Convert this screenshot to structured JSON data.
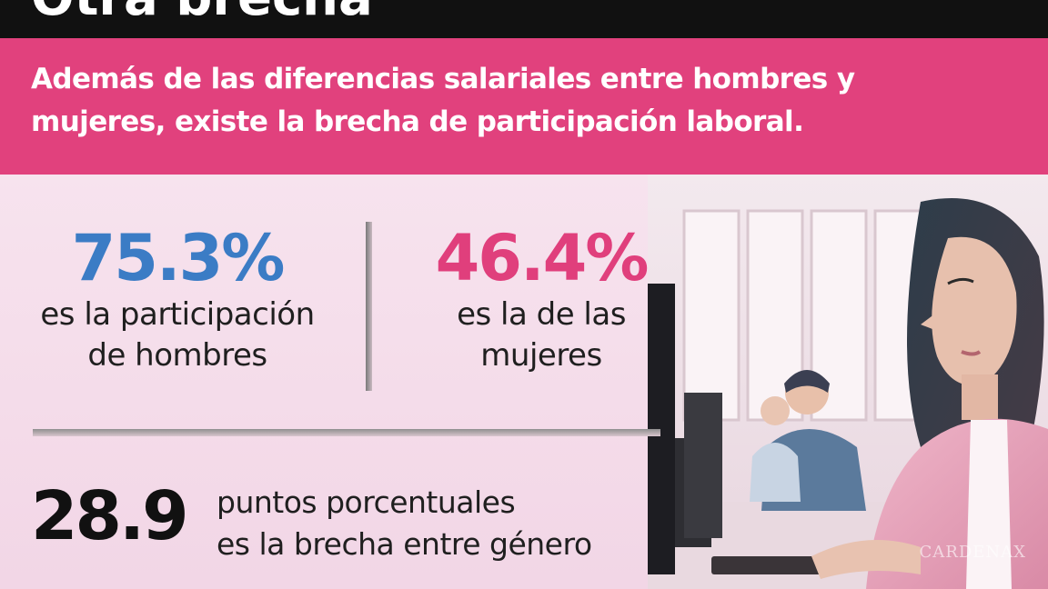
{
  "header": {
    "title": "Otra brecha"
  },
  "intro": {
    "text": "Además de las diferencias salariales entre hombres y mujeres, existe la brecha de participación laboral."
  },
  "stats": {
    "men": {
      "value": "75.3%",
      "label_line1": "es la participación",
      "label_line2": "de hombres"
    },
    "women": {
      "value": "46.4%",
      "label_line1": "es la de las",
      "label_line2": "mujeres"
    }
  },
  "gap": {
    "value": "28.9",
    "line1": "puntos porcentuales",
    "line2": "es la brecha entre género"
  },
  "photo": {
    "watermark": "CARDENAX"
  },
  "colors": {
    "header_bg": "#111111",
    "band_bg": "#e1417d",
    "men_color": "#3b7cc5",
    "women_color": "#e03f7c",
    "content_bg": "#f4dbe8"
  }
}
